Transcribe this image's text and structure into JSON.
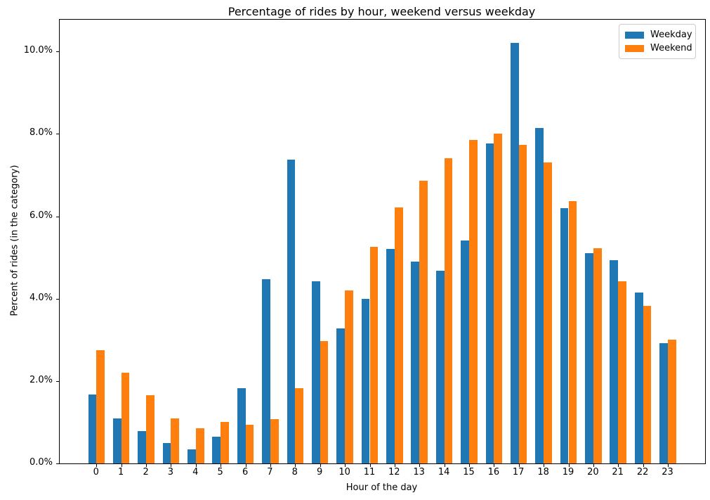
{
  "title": "Percentage of rides by hour, weekend versus weekday",
  "x_axis_label": "Hour of the day",
  "y_axis_label": "Percent of rides (in the category)",
  "legend": {
    "items": [
      {
        "label": "Weekday",
        "color": "#1f77b4"
      },
      {
        "label": "Weekend",
        "color": "#ff7f0e"
      }
    ]
  },
  "chart_data": {
    "type": "bar",
    "title": "Percentage of rides by hour, weekend versus weekday",
    "xlabel": "Hour of the day",
    "ylabel": "Percent of rides (in the category)",
    "categories": [
      0,
      1,
      2,
      3,
      4,
      5,
      6,
      7,
      8,
      9,
      10,
      11,
      12,
      13,
      14,
      15,
      16,
      17,
      18,
      19,
      20,
      21,
      22,
      23
    ],
    "xtick_labels": [
      "0",
      "1",
      "2",
      "3",
      "4",
      "5",
      "6",
      "7",
      "8",
      "9",
      "10",
      "11",
      "12",
      "13",
      "14",
      "15",
      "16",
      "17",
      "18",
      "19",
      "20",
      "21",
      "22",
      "23"
    ],
    "series": [
      {
        "name": "Weekday",
        "color": "#1f77b4",
        "values": [
          1.68,
          1.1,
          0.79,
          0.5,
          0.35,
          0.65,
          1.83,
          4.47,
          7.38,
          4.43,
          3.27,
          3.99,
          5.21,
          4.9,
          4.68,
          5.41,
          7.76,
          10.2,
          8.14,
          6.19,
          5.1,
          4.94,
          4.14,
          2.92
        ]
      },
      {
        "name": "Weekend",
        "color": "#ff7f0e",
        "values": [
          2.75,
          2.21,
          1.66,
          1.1,
          0.86,
          1.0,
          0.94,
          1.07,
          1.83,
          2.97,
          4.2,
          5.25,
          6.21,
          6.87,
          7.41,
          7.85,
          8.0,
          7.74,
          7.31,
          6.37,
          5.22,
          4.42,
          3.82,
          3.01
        ]
      }
    ],
    "unit": "%",
    "ylim": [
      0,
      10.77
    ],
    "yticks": [
      0,
      2,
      4,
      6,
      8,
      10
    ],
    "ytick_labels": [
      "0.0%",
      "2.0%",
      "4.0%",
      "6.0%",
      "8.0%",
      "10.0%"
    ],
    "grid": false,
    "legend_position": "upper right"
  }
}
